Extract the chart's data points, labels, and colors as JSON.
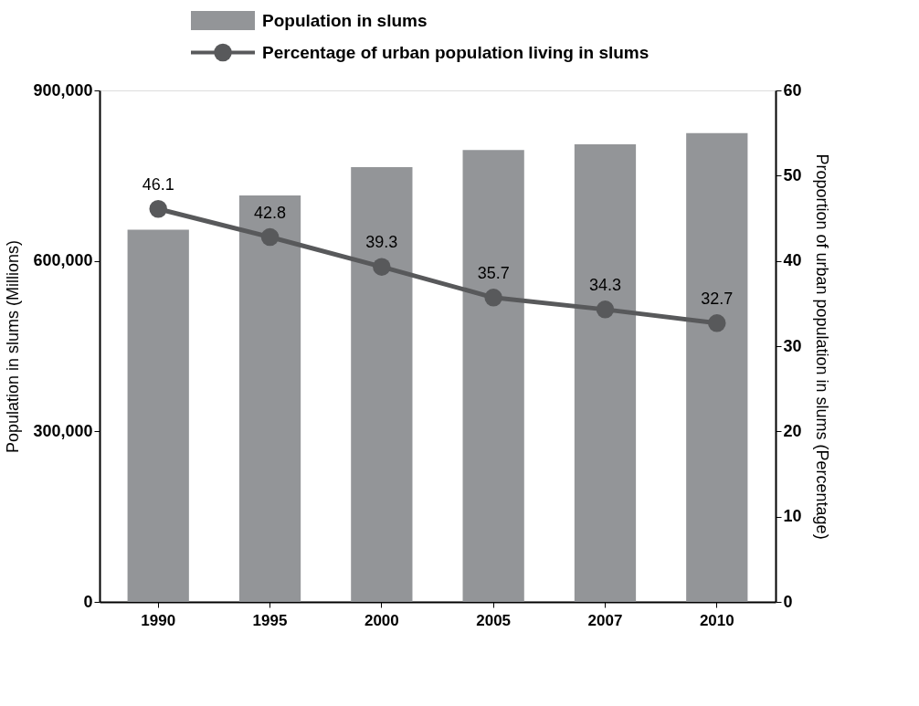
{
  "chart_data": {
    "type": "bar",
    "categories": [
      "1990",
      "1995",
      "2000",
      "2005",
      "2007",
      "2010"
    ],
    "ylabel": "Population in slums (Millions)",
    "y2label": "Proportion of urban population in slums (Percentage)",
    "series": [
      {
        "name": "Population in slums",
        "color": "#939598",
        "values": [
          655000,
          715000,
          765000,
          795000,
          805000,
          825000
        ]
      },
      {
        "name": "Percentage of urban population living in slums",
        "type": "line",
        "axis": "y2",
        "color": "#58595b",
        "values": [
          46.1,
          42.8,
          39.3,
          35.7,
          34.3,
          32.7
        ],
        "value_labels": [
          "46.1",
          "42.8",
          "39.3",
          "35.7",
          "34.3",
          "32.7"
        ]
      }
    ],
    "ylim": [
      0,
      900000
    ],
    "yticks": [
      0,
      {
        "value": 300000,
        "label": "300,000"
      },
      {
        "value": 600000,
        "label": "600,000"
      },
      {
        "value": 900000,
        "label": "900,000"
      }
    ],
    "y2lim": [
      0,
      60
    ],
    "y2ticks": [
      0,
      10,
      20,
      30,
      40,
      50,
      60
    ],
    "marker": "circle",
    "line_style": "solid",
    "grid": false,
    "legend": "top"
  }
}
